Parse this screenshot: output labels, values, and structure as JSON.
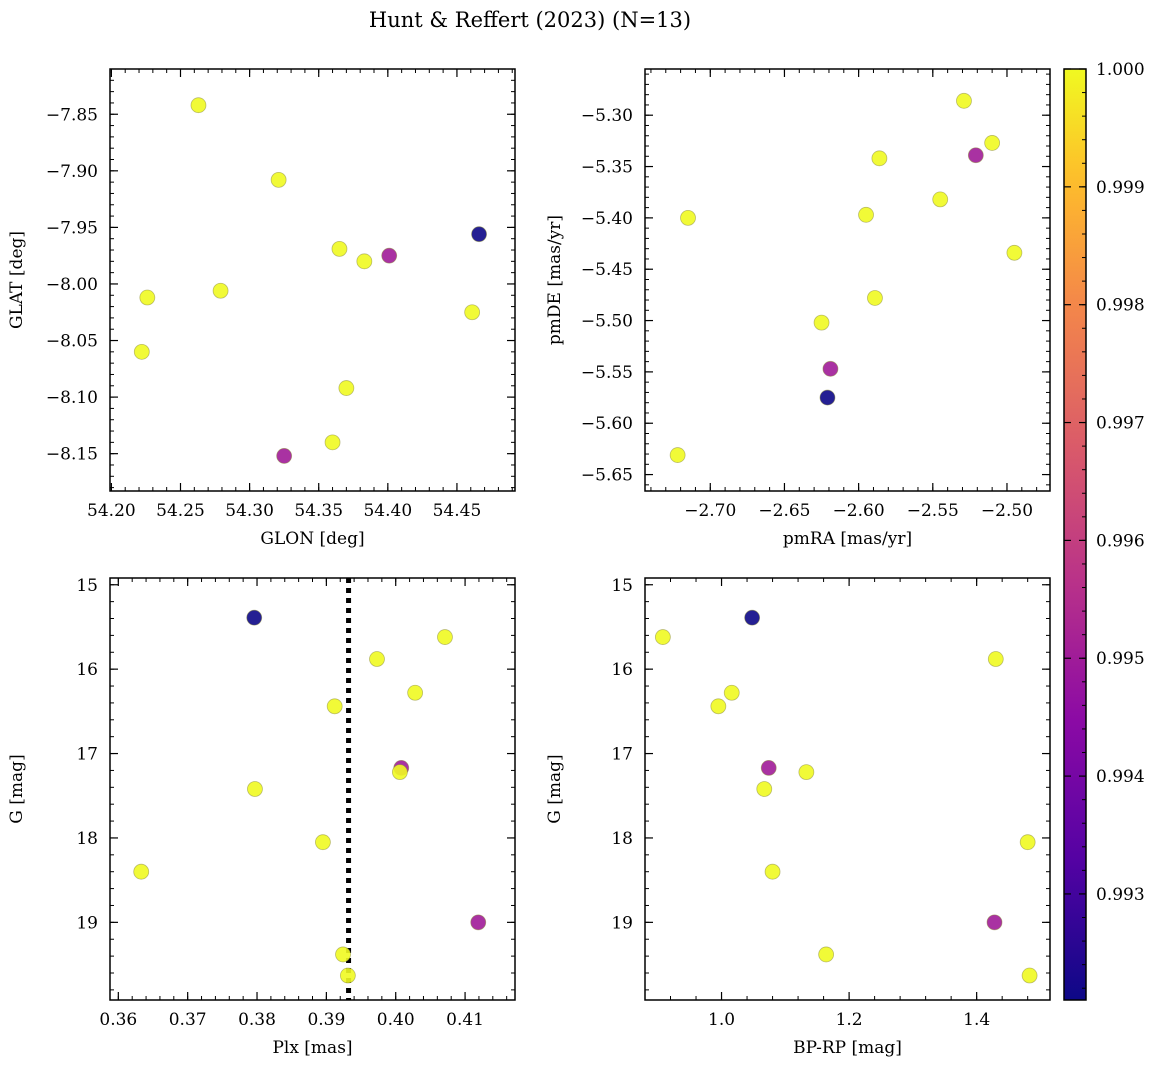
{
  "figure_title": "Hunt & Reffert (2023) (N=13)",
  "colors": {
    "high": "#f0f921",
    "mid": "#b83fae",
    "low": "#2a2c8f",
    "frame": "#000000"
  },
  "chart_data": [
    {
      "id": "glon_glat",
      "type": "scatter",
      "xlabel": "GLON [deg]",
      "ylabel": "GLAT [deg]",
      "xlim": [
        54.199,
        54.492
      ],
      "ylim": [
        -8.183,
        -7.81
      ],
      "y_inverted": false,
      "xticks": [
        54.2,
        54.25,
        54.3,
        54.35,
        54.4,
        54.45
      ],
      "xtick_labels": [
        "54.20",
        "54.25",
        "54.30",
        "54.35",
        "54.40",
        "54.45"
      ],
      "yticks": [
        -7.85,
        -7.9,
        -7.95,
        -8.0,
        -8.05,
        -8.1,
        -8.15
      ],
      "ytick_labels": [
        "−7.85",
        "−7.90",
        "−7.95",
        "−8.00",
        "−8.05",
        "−8.10",
        "−8.15"
      ],
      "points": [
        {
          "x": 54.263,
          "y": -7.842,
          "c": 1.0
        },
        {
          "x": 54.321,
          "y": -7.908,
          "c": 1.0
        },
        {
          "x": 54.466,
          "y": -7.956,
          "c": 0.992
        },
        {
          "x": 54.365,
          "y": -7.969,
          "c": 1.0
        },
        {
          "x": 54.383,
          "y": -7.98,
          "c": 1.0
        },
        {
          "x": 54.401,
          "y": -7.975,
          "c": 0.995
        },
        {
          "x": 54.226,
          "y": -8.012,
          "c": 1.0
        },
        {
          "x": 54.279,
          "y": -8.006,
          "c": 1.0
        },
        {
          "x": 54.461,
          "y": -8.025,
          "c": 1.0
        },
        {
          "x": 54.222,
          "y": -8.06,
          "c": 1.0
        },
        {
          "x": 54.37,
          "y": -8.092,
          "c": 1.0
        },
        {
          "x": 54.36,
          "y": -8.14,
          "c": 1.0
        },
        {
          "x": 54.325,
          "y": -8.152,
          "c": 0.995
        }
      ]
    },
    {
      "id": "pm",
      "type": "scatter",
      "xlabel": "pmRA [mas/yr]",
      "ylabel": "pmDE [mas/yr]",
      "xlim": [
        -2.744,
        -2.471
      ],
      "ylim": [
        -5.666,
        -5.255
      ],
      "y_inverted": false,
      "xticks": [
        -2.7,
        -2.65,
        -2.6,
        -2.55,
        -2.5
      ],
      "xtick_labels": [
        "−2.70",
        "−2.65",
        "−2.60",
        "−2.55",
        "−2.50"
      ],
      "yticks": [
        -5.3,
        -5.35,
        -5.4,
        -5.45,
        -5.5,
        -5.55,
        -5.6,
        -5.65
      ],
      "ytick_labels": [
        "−5.30",
        "−5.35",
        "−5.40",
        "−5.45",
        "−5.50",
        "−5.55",
        "−5.60",
        "−5.65"
      ],
      "points": [
        {
          "x": -2.529,
          "y": -5.286,
          "c": 1.0
        },
        {
          "x": -2.51,
          "y": -5.327,
          "c": 1.0
        },
        {
          "x": -2.521,
          "y": -5.339,
          "c": 0.995
        },
        {
          "x": -2.586,
          "y": -5.342,
          "c": 1.0
        },
        {
          "x": -2.545,
          "y": -5.382,
          "c": 1.0
        },
        {
          "x": -2.595,
          "y": -5.397,
          "c": 1.0
        },
        {
          "x": -2.715,
          "y": -5.4,
          "c": 1.0
        },
        {
          "x": -2.495,
          "y": -5.434,
          "c": 1.0
        },
        {
          "x": -2.589,
          "y": -5.478,
          "c": 1.0
        },
        {
          "x": -2.625,
          "y": -5.502,
          "c": 1.0
        },
        {
          "x": -2.619,
          "y": -5.547,
          "c": 0.995
        },
        {
          "x": -2.621,
          "y": -5.575,
          "c": 0.992
        },
        {
          "x": -2.722,
          "y": -5.631,
          "c": 1.0
        }
      ]
    },
    {
      "id": "plx_g",
      "type": "scatter",
      "xlabel": "Plx [mas]",
      "ylabel": "G [mag]",
      "xlim": [
        0.3588,
        0.4172
      ],
      "ylim": [
        14.92,
        19.92
      ],
      "y_inverted": true,
      "vline": {
        "x": 0.3932,
        "style": "dotted"
      },
      "xticks": [
        0.36,
        0.37,
        0.38,
        0.39,
        0.4,
        0.41
      ],
      "xtick_labels": [
        "0.36",
        "0.37",
        "0.38",
        "0.39",
        "0.40",
        "0.41"
      ],
      "yticks": [
        15,
        16,
        17,
        18,
        19
      ],
      "ytick_labels": [
        "15",
        "16",
        "17",
        "18",
        "19"
      ],
      "points": [
        {
          "x": 0.3796,
          "y": 15.39,
          "c": 0.992
        },
        {
          "x": 0.4071,
          "y": 15.62,
          "c": 1.0
        },
        {
          "x": 0.3973,
          "y": 15.88,
          "c": 1.0
        },
        {
          "x": 0.4028,
          "y": 16.28,
          "c": 1.0
        },
        {
          "x": 0.3912,
          "y": 16.44,
          "c": 1.0
        },
        {
          "x": 0.4008,
          "y": 17.17,
          "c": 0.995
        },
        {
          "x": 0.4006,
          "y": 17.22,
          "c": 1.0
        },
        {
          "x": 0.3797,
          "y": 17.42,
          "c": 1.0
        },
        {
          "x": 0.3895,
          "y": 18.05,
          "c": 1.0
        },
        {
          "x": 0.3633,
          "y": 18.4,
          "c": 1.0
        },
        {
          "x": 0.4119,
          "y": 19.0,
          "c": 0.995
        },
        {
          "x": 0.3924,
          "y": 19.38,
          "c": 1.0
        },
        {
          "x": 0.3931,
          "y": 19.63,
          "c": 1.0
        }
      ]
    },
    {
      "id": "bprp_g",
      "type": "scatter",
      "xlabel": "BP-RP [mag]",
      "ylabel": "G [mag]",
      "xlim": [
        0.88,
        1.515
      ],
      "ylim": [
        14.92,
        19.92
      ],
      "y_inverted": true,
      "xticks": [
        1.0,
        1.2,
        1.4
      ],
      "xtick_labels": [
        "1.0",
        "1.2",
        "1.4"
      ],
      "yticks": [
        15,
        16,
        17,
        18,
        19
      ],
      "ytick_labels": [
        "15",
        "16",
        "17",
        "18",
        "19"
      ],
      "points": [
        {
          "x": 1.048,
          "y": 15.39,
          "c": 0.992
        },
        {
          "x": 0.908,
          "y": 15.62,
          "c": 1.0
        },
        {
          "x": 1.43,
          "y": 15.88,
          "c": 1.0
        },
        {
          "x": 1.016,
          "y": 16.28,
          "c": 1.0
        },
        {
          "x": 0.995,
          "y": 16.44,
          "c": 1.0
        },
        {
          "x": 1.074,
          "y": 17.17,
          "c": 0.995
        },
        {
          "x": 1.133,
          "y": 17.22,
          "c": 1.0
        },
        {
          "x": 1.067,
          "y": 17.42,
          "c": 1.0
        },
        {
          "x": 1.48,
          "y": 18.05,
          "c": 1.0
        },
        {
          "x": 1.08,
          "y": 18.4,
          "c": 1.0
        },
        {
          "x": 1.428,
          "y": 19.0,
          "c": 0.995
        },
        {
          "x": 1.164,
          "y": 19.38,
          "c": 1.0
        },
        {
          "x": 1.483,
          "y": 19.63,
          "c": 1.0
        }
      ]
    }
  ],
  "colorbar": {
    "range": [
      0.9921,
      1.0
    ],
    "ticks": [
      0.993,
      0.994,
      0.995,
      0.996,
      0.997,
      0.998,
      0.999,
      1.0
    ],
    "tick_labels": [
      "0.993",
      "0.994",
      "0.995",
      "0.996",
      "0.997",
      "0.998",
      "0.999",
      "1.000"
    ],
    "colormap": "plasma"
  }
}
